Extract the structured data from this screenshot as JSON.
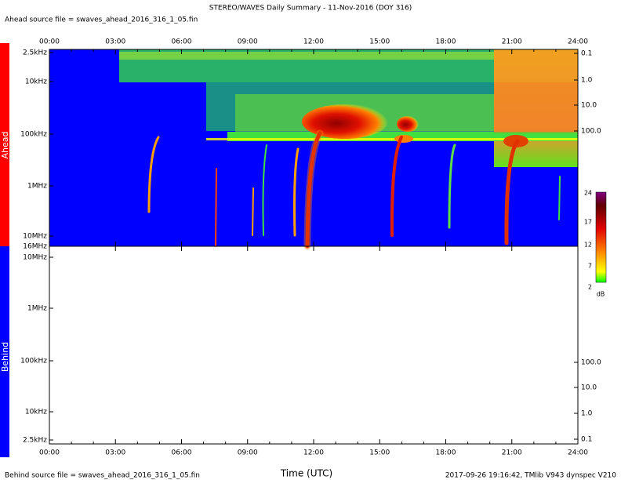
{
  "header": {
    "title": "STEREO/WAVES Daily Summary - 11-Nov-2016 (DOY 316)",
    "ahead_source": "Ahead source file = swaves_ahead_2016_316_1_05.fin"
  },
  "time_ticks": [
    "00:00",
    "03:00",
    "06:00",
    "09:00",
    "12:00",
    "15:00",
    "18:00",
    "21:00",
    "24:00"
  ],
  "ahead": {
    "label": "Ahead",
    "freq_ticks": [
      "2.5kHz",
      "10kHz",
      "100kHz",
      "1MHz",
      "10MHz",
      "16MHz"
    ],
    "right_ticks": [
      "0.1",
      "1.0",
      "10.0",
      "100.0"
    ]
  },
  "behind": {
    "label": "Behind",
    "freq_ticks": [
      "10MHz",
      "1MHz",
      "100kHz",
      "10kHz",
      "2.5kHz"
    ],
    "right_ticks": [
      "100.0",
      "10.0",
      "1.0",
      "0.1"
    ]
  },
  "colorbar": {
    "ticks": [
      "24",
      "17",
      "12",
      "7",
      "2"
    ],
    "unit": "dB"
  },
  "footer": {
    "behind_source": "Behind source file = swaves_ahead_2016_316_1_05.fin",
    "axis_label": "Time (UTC)",
    "stamp": "2017-09-26 19:16:42, TMlib V943 dynspec V210"
  }
}
